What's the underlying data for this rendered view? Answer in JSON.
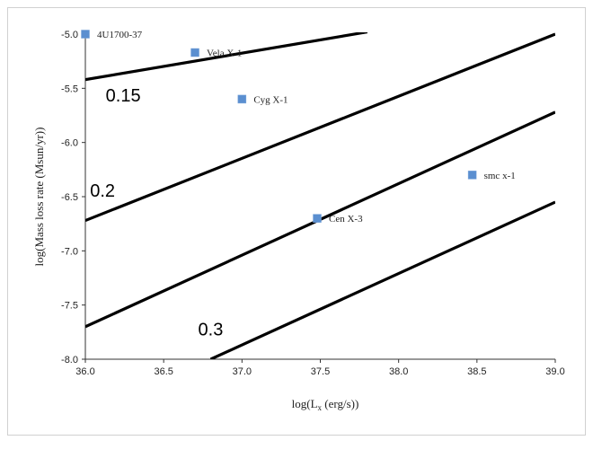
{
  "chart_data": {
    "type": "scatter",
    "xlabel": "log(L_x (erg/s))",
    "xlabel_main": "log(L",
    "xlabel_sub": "x",
    "xlabel_rest": " (erg/s))",
    "ylabel": "log(Mass loss rate (Msun/yr))",
    "xlim": [
      36.0,
      39.0
    ],
    "ylim": [
      -8.0,
      -5.0
    ],
    "xticks": [
      "36.0",
      "36.5",
      "37.0",
      "37.5",
      "38.0",
      "38.5",
      "39.0"
    ],
    "yticks": [
      "-5.0",
      "-5.5",
      "-6.0",
      "-6.5",
      "-7.0",
      "-7.5",
      "-8.0"
    ],
    "grid": false,
    "marker_color": "#5b8fd0",
    "points": [
      {
        "label": "4U1700-37",
        "x": 36.0,
        "y": -5.0
      },
      {
        "label": "Vela X-1",
        "x": 36.7,
        "y": -5.17
      },
      {
        "label": "Cyg X-1",
        "x": 37.0,
        "y": -5.6
      },
      {
        "label": "Cen X-3",
        "x": 37.48,
        "y": -6.7
      },
      {
        "label": "smc x-1",
        "x": 38.47,
        "y": -6.3
      }
    ],
    "lines": [
      {
        "label": "0.15",
        "x": [
          36.0,
          37.8
        ],
        "y": [
          -5.42,
          -4.98
        ]
      },
      {
        "label": "0.2",
        "x": [
          36.0,
          39.0
        ],
        "y": [
          -6.72,
          -5.0
        ]
      },
      {
        "label": "",
        "x": [
          36.0,
          39.0
        ],
        "y": [
          -7.7,
          -5.72
        ]
      },
      {
        "label": "0.3",
        "x": [
          36.8,
          39.0
        ],
        "y": [
          -8.0,
          -6.55
        ]
      }
    ],
    "line_labels": [
      {
        "text": "0.15",
        "x": 36.13,
        "y": -5.62
      },
      {
        "text": "0.2",
        "x": 36.03,
        "y": -6.5
      },
      {
        "text": "0.3",
        "x": 36.72,
        "y": -7.78
      }
    ]
  }
}
